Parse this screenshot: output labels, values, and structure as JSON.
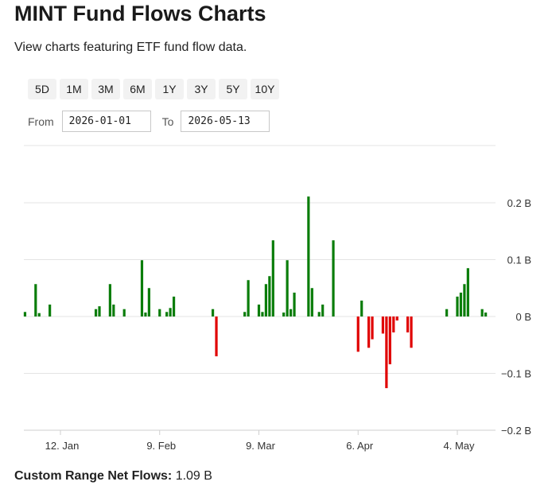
{
  "header": {
    "title": "MINT Fund Flows Charts",
    "subtitle": "View charts featuring ETF fund flow data."
  },
  "range_buttons": [
    "5D",
    "1M",
    "3M",
    "6M",
    "1Y",
    "3Y",
    "5Y",
    "10Y"
  ],
  "date_range": {
    "from_label": "From",
    "from_value": "2026-01-01",
    "to_label": "To",
    "to_value": "2026-05-13"
  },
  "colors": {
    "inflow": "#0a7d0a",
    "outflow": "#e00000",
    "grid": "#e3e3e3"
  },
  "summary": {
    "label": "Custom Range Net Flows:",
    "value": "1.09 B"
  },
  "chart_data": {
    "type": "bar",
    "title": "",
    "xlabel": "",
    "ylabel": "",
    "ylim": [
      -0.2,
      0.2
    ],
    "grid": true,
    "x_ticks": [
      {
        "date": "2026-01-12",
        "label": "12. Jan"
      },
      {
        "date": "2026-02-09",
        "label": "9. Feb"
      },
      {
        "date": "2026-03-09",
        "label": "9. Mar"
      },
      {
        "date": "2026-04-06",
        "label": "6. Apr"
      },
      {
        "date": "2026-05-04",
        "label": "4. May"
      }
    ],
    "y_ticks": [
      {
        "value": 0.2,
        "label": "0.2 B"
      },
      {
        "value": 0.1,
        "label": "0.1 B"
      },
      {
        "value": 0,
        "label": "0 B"
      },
      {
        "value": -0.1,
        "label": "−0.1 B"
      },
      {
        "value": -0.2,
        "label": "−0.2 B"
      }
    ],
    "bars": [
      {
        "date": "2026-01-02",
        "value": 0.008
      },
      {
        "date": "2026-01-05",
        "value": 0.057
      },
      {
        "date": "2026-01-06",
        "value": 0.006
      },
      {
        "date": "2026-01-09",
        "value": 0.021
      },
      {
        "date": "2026-01-22",
        "value": 0.013
      },
      {
        "date": "2026-01-23",
        "value": 0.018
      },
      {
        "date": "2026-01-26",
        "value": 0.057
      },
      {
        "date": "2026-01-27",
        "value": 0.021
      },
      {
        "date": "2026-01-30",
        "value": 0.013
      },
      {
        "date": "2026-02-04",
        "value": 0.099
      },
      {
        "date": "2026-02-05",
        "value": 0.007
      },
      {
        "date": "2026-02-06",
        "value": 0.05
      },
      {
        "date": "2026-02-09",
        "value": 0.013
      },
      {
        "date": "2026-02-11",
        "value": 0.008
      },
      {
        "date": "2026-02-12",
        "value": 0.015
      },
      {
        "date": "2026-02-13",
        "value": 0.035
      },
      {
        "date": "2026-02-24",
        "value": 0.013
      },
      {
        "date": "2026-02-25",
        "value": -0.07
      },
      {
        "date": "2026-03-05",
        "value": 0.008
      },
      {
        "date": "2026-03-06",
        "value": 0.064
      },
      {
        "date": "2026-03-09",
        "value": 0.021
      },
      {
        "date": "2026-03-10",
        "value": 0.008
      },
      {
        "date": "2026-03-11",
        "value": 0.057
      },
      {
        "date": "2026-03-12",
        "value": 0.071
      },
      {
        "date": "2026-03-13",
        "value": 0.134
      },
      {
        "date": "2026-03-16",
        "value": 0.007
      },
      {
        "date": "2026-03-17",
        "value": 0.099
      },
      {
        "date": "2026-03-18",
        "value": 0.013
      },
      {
        "date": "2026-03-19",
        "value": 0.042
      },
      {
        "date": "2026-03-23",
        "value": 0.211
      },
      {
        "date": "2026-03-24",
        "value": 0.05
      },
      {
        "date": "2026-03-26",
        "value": 0.008
      },
      {
        "date": "2026-03-27",
        "value": 0.021
      },
      {
        "date": "2026-03-30",
        "value": 0.134
      },
      {
        "date": "2026-04-06",
        "value": -0.062
      },
      {
        "date": "2026-04-07",
        "value": 0.028
      },
      {
        "date": "2026-04-09",
        "value": -0.055
      },
      {
        "date": "2026-04-10",
        "value": -0.04
      },
      {
        "date": "2026-04-13",
        "value": -0.03
      },
      {
        "date": "2026-04-14",
        "value": -0.126
      },
      {
        "date": "2026-04-15",
        "value": -0.084
      },
      {
        "date": "2026-04-16",
        "value": -0.028
      },
      {
        "date": "2026-04-17",
        "value": -0.007
      },
      {
        "date": "2026-04-20",
        "value": -0.028
      },
      {
        "date": "2026-04-21",
        "value": -0.055
      },
      {
        "date": "2026-05-01",
        "value": 0.013
      },
      {
        "date": "2026-05-04",
        "value": 0.035
      },
      {
        "date": "2026-05-05",
        "value": 0.042
      },
      {
        "date": "2026-05-06",
        "value": 0.057
      },
      {
        "date": "2026-05-07",
        "value": 0.085
      },
      {
        "date": "2026-05-11",
        "value": 0.013
      },
      {
        "date": "2026-05-12",
        "value": 0.007
      }
    ]
  }
}
